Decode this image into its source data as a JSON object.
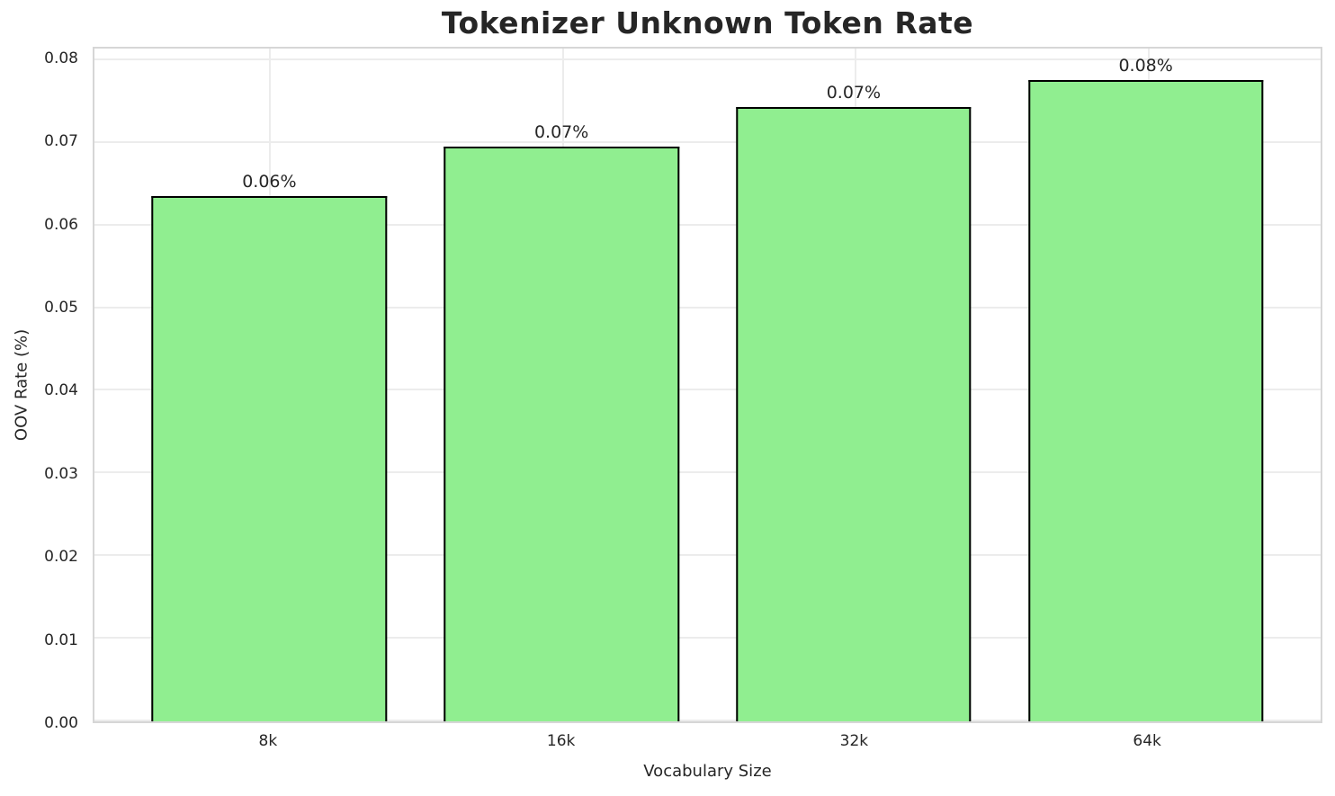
{
  "chart_data": {
    "type": "bar",
    "title": "Tokenizer Unknown Token Rate",
    "xlabel": "Vocabulary Size",
    "ylabel": "OOV Rate (%)",
    "categories": [
      "8k",
      "16k",
      "32k",
      "64k"
    ],
    "values": [
      0.0636,
      0.0695,
      0.0743,
      0.0776
    ],
    "bar_labels": [
      "0.06%",
      "0.07%",
      "0.07%",
      "0.08%"
    ],
    "yticks": [
      "0.00",
      "0.01",
      "0.02",
      "0.03",
      "0.04",
      "0.05",
      "0.06",
      "0.07",
      "0.08"
    ],
    "ytick_values": [
      0.0,
      0.01,
      0.02,
      0.03,
      0.04,
      0.05,
      0.06,
      0.07,
      0.08
    ],
    "ylim": [
      0,
      0.0814
    ],
    "grid": "both",
    "legend": "none",
    "bar_color": "#90EE90",
    "bar_edge_color": "#000000",
    "grid_color": "#ececec",
    "spine_color": "#d6d6d6",
    "text_color": "#262626",
    "background_color": "#ffffff"
  }
}
